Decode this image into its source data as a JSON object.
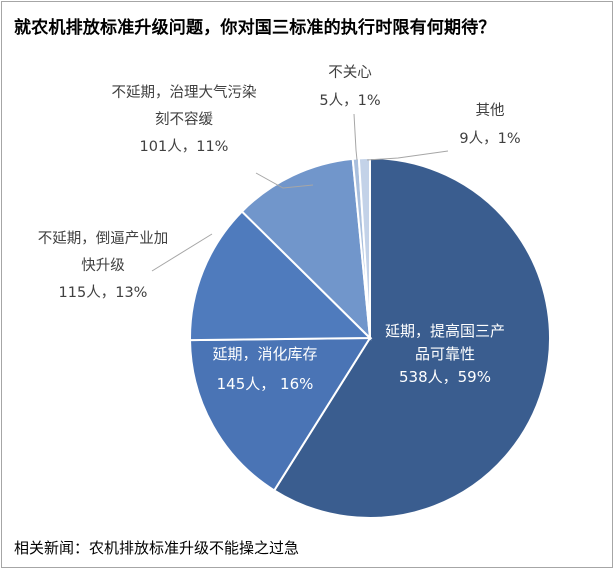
{
  "title": "就农机排放标准升级问题，你对国三标准的执行时限有何期待？",
  "footer": "相关新闻：农机排放标准升级不能操之过急",
  "chart_data": {
    "type": "pie",
    "title": "就农机排放标准升级问题，你对国三标准的执行时限有何期待？",
    "slices": [
      {
        "label_lines": [
          "延期，提高国三产",
          "品可靠性"
        ],
        "count_text": "538人，59%",
        "count": 538,
        "percent": 59,
        "color": "#3a5d8f"
      },
      {
        "label_lines": [
          "延期，消化库存"
        ],
        "count_text": "145人， 16%",
        "count": 145,
        "percent": 16,
        "color": "#4a74b5"
      },
      {
        "label_lines": [
          "不延期，倒逼产业加",
          "快升级"
        ],
        "count_text": "115人，13%",
        "count": 115,
        "percent": 13,
        "color": "#4f7bbd"
      },
      {
        "label_lines": [
          "不延期，治理大气污染",
          "刻不容缓"
        ],
        "count_text": "101人，11%",
        "count": 101,
        "percent": 11,
        "color": "#7196cb"
      },
      {
        "label_lines": [
          "不关心"
        ],
        "count_text": "5人，1%",
        "count": 5,
        "percent": 1,
        "color": "#a9bfdd"
      },
      {
        "label_lines": [
          "其他"
        ],
        "count_text": "9人，1%",
        "count": 9,
        "percent": 1,
        "color": "#c3d2e8"
      }
    ]
  }
}
